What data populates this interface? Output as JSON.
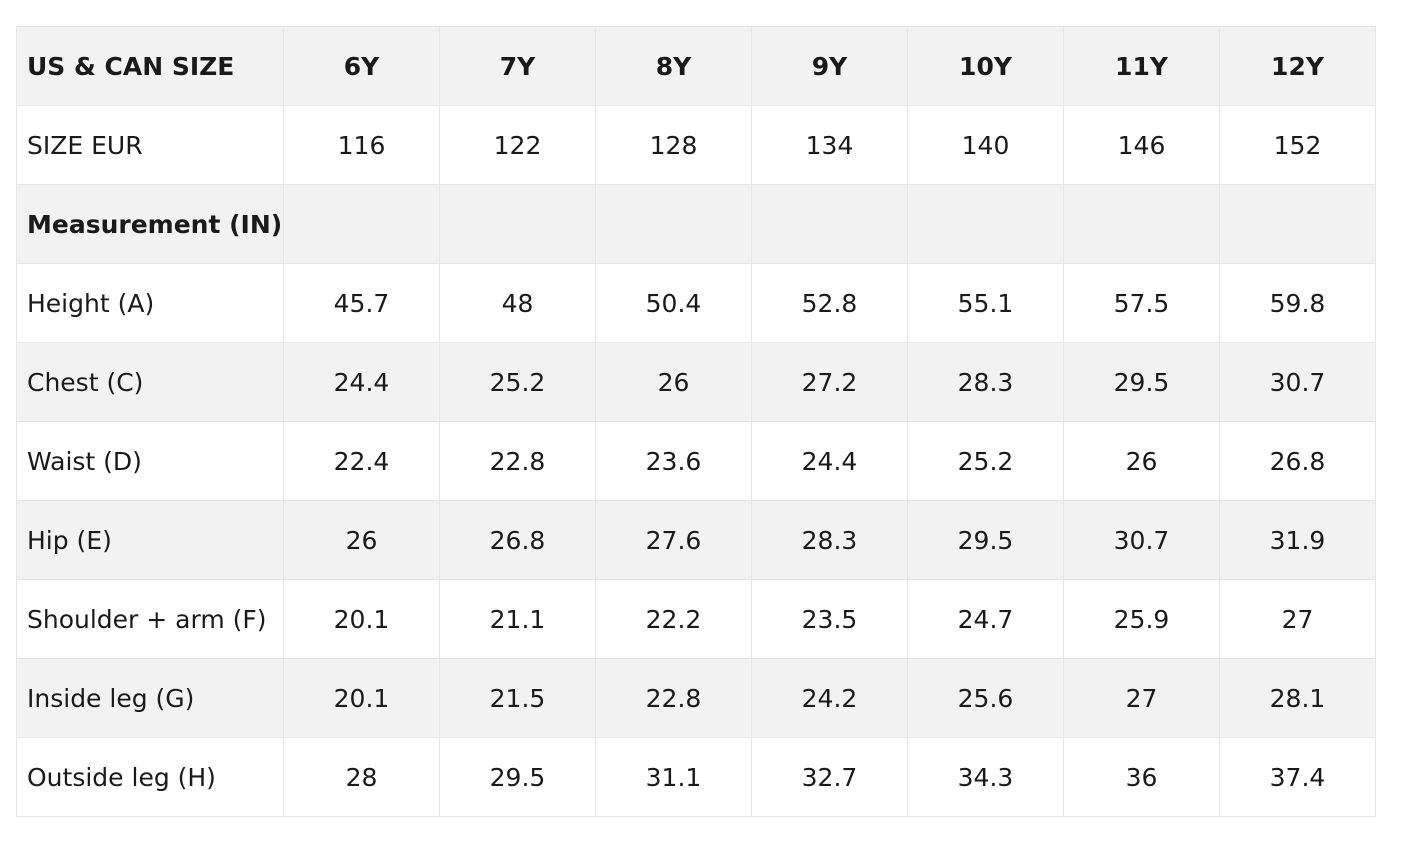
{
  "header": {
    "label": "US & CAN SIZE",
    "sizes": [
      "6Y",
      "7Y",
      "8Y",
      "9Y",
      "10Y",
      "11Y",
      "12Y"
    ]
  },
  "size_eur": {
    "label": "SIZE EUR",
    "values": [
      "116",
      "122",
      "128",
      "134",
      "140",
      "146",
      "152"
    ]
  },
  "section": {
    "label": "Measurement (IN)"
  },
  "rows": [
    {
      "label": "Height (A)",
      "values": [
        "45.7",
        "48",
        "50.4",
        "52.8",
        "55.1",
        "57.5",
        "59.8"
      ]
    },
    {
      "label": "Chest (C)",
      "values": [
        "24.4",
        "25.2",
        "26",
        "27.2",
        "28.3",
        "29.5",
        "30.7"
      ]
    },
    {
      "label": "Waist (D)",
      "values": [
        "22.4",
        "22.8",
        "23.6",
        "24.4",
        "25.2",
        "26",
        "26.8"
      ]
    },
    {
      "label": "Hip (E)",
      "values": [
        "26",
        "26.8",
        "27.6",
        "28.3",
        "29.5",
        "30.7",
        "31.9"
      ]
    },
    {
      "label": "Shoulder + arm (F)",
      "values": [
        "20.1",
        "21.1",
        "22.2",
        "23.5",
        "24.7",
        "25.9",
        "27"
      ]
    },
    {
      "label": "Inside leg (G)",
      "values": [
        "20.1",
        "21.5",
        "22.8",
        "24.2",
        "25.6",
        "27",
        "28.1"
      ]
    },
    {
      "label": "Outside leg (H)",
      "values": [
        "28",
        "29.5",
        "31.1",
        "32.7",
        "34.3",
        "36",
        "37.4"
      ]
    }
  ],
  "colors": {
    "shaded_row": "#f2f2f2",
    "white_row": "#ffffff",
    "border": "#e6e6e6",
    "text": "#1a1a1a"
  }
}
